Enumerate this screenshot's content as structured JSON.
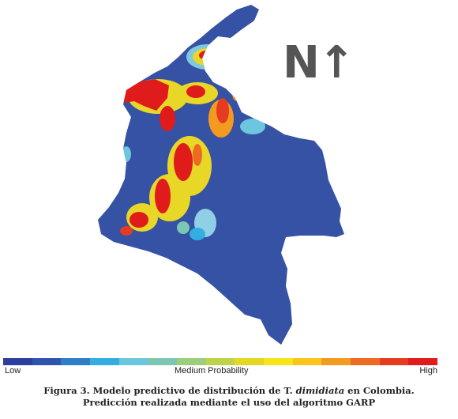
{
  "north": {
    "letter": "N",
    "arrow": "↑"
  },
  "legend": {
    "low_label": "Low",
    "mid_label": "Medium Probability",
    "high_label": "High",
    "colors": [
      "#2c3f9c",
      "#2f54b0",
      "#2e7ec8",
      "#33aee0",
      "#6cc6dd",
      "#7cc7b4",
      "#9bcf7d",
      "#bfd34a",
      "#e5d824",
      "#f7e41a",
      "#f9c51a",
      "#f39a20",
      "#ec6a22",
      "#e43b21",
      "#e01b1b"
    ]
  },
  "caption": {
    "line1_prefix": "Figura 3. Modelo predictivo de distribución de T. ",
    "species": "dimidiata",
    "line1_suffix": " en Colombia.",
    "line2": "Predicción realizada mediante el uso del algoritmo GARP"
  }
}
